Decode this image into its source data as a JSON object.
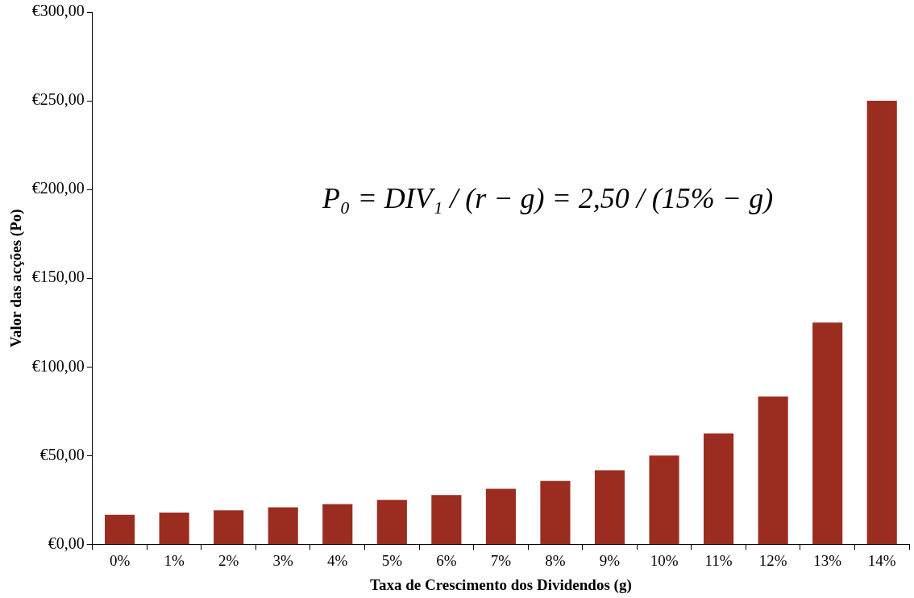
{
  "chart_data": {
    "type": "bar",
    "xlabel": "Taxa de Crescimento dos Dividendos (g)",
    "ylabel": "Valor das acções (Po)",
    "categories": [
      "0%",
      "1%",
      "2%",
      "3%",
      "4%",
      "5%",
      "6%",
      "7%",
      "8%",
      "9%",
      "10%",
      "11%",
      "12%",
      "13%",
      "14%"
    ],
    "values": [
      16.7,
      17.9,
      19.2,
      20.8,
      22.7,
      25,
      27.8,
      31.3,
      35.7,
      41.7,
      50,
      62.5,
      83.3,
      125,
      250
    ],
    "color": "#9b2d20",
    "ylim": [
      0,
      300
    ],
    "yticks": [
      {
        "value": 0,
        "label": "€0,00"
      },
      {
        "value": 50,
        "label": "€50,00"
      },
      {
        "value": 100,
        "label": "€100,00"
      },
      {
        "value": 150,
        "label": "€150,00"
      },
      {
        "value": 200,
        "label": "€200,00"
      },
      {
        "value": 250,
        "label": "€250,00"
      },
      {
        "value": 300,
        "label": "€300,00"
      }
    ],
    "annotations": [
      "P₀ = DIV₁ / (r − g) = 2,50 / (15% − g)"
    ],
    "grid": false,
    "legend": false
  }
}
